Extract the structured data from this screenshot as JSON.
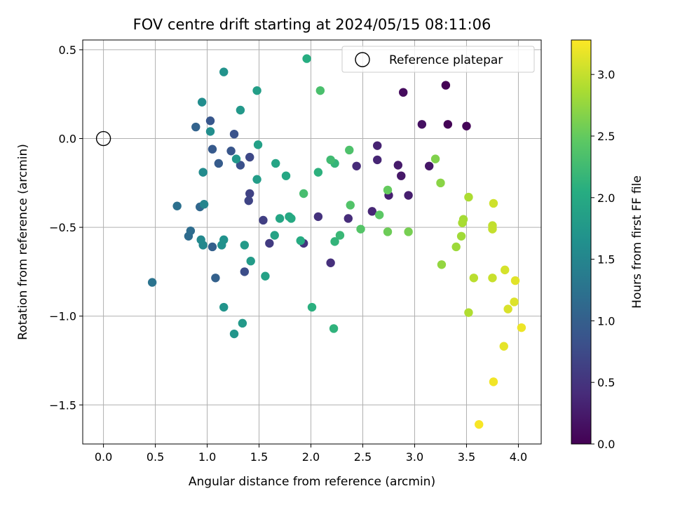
{
  "chart_data": {
    "type": "scatter",
    "title": "FOV centre drift starting at 2024/05/15 08:11:06",
    "xlabel": "Angular distance from reference (arcmin)",
    "ylabel": "Rotation from reference (arcmin)",
    "xlim": [
      -0.2,
      4.22
    ],
    "ylim": [
      -1.72,
      0.555
    ],
    "xticks": [
      0.0,
      0.5,
      1.0,
      1.5,
      2.0,
      2.5,
      3.0,
      3.5,
      4.0
    ],
    "xtick_labels": [
      "0.0",
      "0.5",
      "1.0",
      "1.5",
      "2.0",
      "2.5",
      "3.0",
      "3.5",
      "4.0"
    ],
    "yticks": [
      0.5,
      0.0,
      -0.5,
      -1.0,
      -1.5
    ],
    "ytick_labels": [
      "0.5",
      "0.0",
      "−0.5",
      "−1.0",
      "−1.5"
    ],
    "grid": true,
    "legend": {
      "placement": "top-right",
      "entries": [
        "Reference platepar"
      ]
    },
    "reference_point": {
      "x": 0.0,
      "y": 0.0
    },
    "colorbar": {
      "label": "Hours from first FF file",
      "colormap": "viridis",
      "range": [
        0.0,
        3.28
      ],
      "ticks": [
        0.0,
        0.5,
        1.0,
        1.5,
        2.0,
        2.5,
        3.0
      ],
      "tick_labels": [
        "0.0",
        "0.5",
        "1.0",
        "1.5",
        "2.0",
        "2.5",
        "3.0"
      ]
    },
    "points": [
      {
        "x": 3.3,
        "y": 0.3,
        "c": 0.0
      },
      {
        "x": 3.32,
        "y": 0.08,
        "c": 0.02
      },
      {
        "x": 3.5,
        "y": 0.07,
        "c": 0.04
      },
      {
        "x": 2.89,
        "y": 0.26,
        "c": 0.1
      },
      {
        "x": 3.07,
        "y": 0.08,
        "c": 0.14
      },
      {
        "x": 3.14,
        "y": -0.155,
        "c": 0.2
      },
      {
        "x": 2.87,
        "y": -0.21,
        "c": 0.22
      },
      {
        "x": 2.84,
        "y": -0.15,
        "c": 0.25
      },
      {
        "x": 2.94,
        "y": -0.32,
        "c": 0.28
      },
      {
        "x": 2.75,
        "y": -0.32,
        "c": 0.3
      },
      {
        "x": 2.64,
        "y": -0.04,
        "c": 0.32
      },
      {
        "x": 2.64,
        "y": -0.12,
        "c": 0.34
      },
      {
        "x": 2.59,
        "y": -0.41,
        "c": 0.36
      },
      {
        "x": 2.44,
        "y": -0.155,
        "c": 0.4
      },
      {
        "x": 2.36,
        "y": -0.45,
        "c": 0.42
      },
      {
        "x": 2.19,
        "y": -0.7,
        "c": 0.45
      },
      {
        "x": 2.07,
        "y": -0.44,
        "c": 0.48
      },
      {
        "x": 1.93,
        "y": -0.59,
        "c": 0.5
      },
      {
        "x": 1.6,
        "y": -0.59,
        "c": 0.58
      },
      {
        "x": 1.54,
        "y": -0.46,
        "c": 0.62
      },
      {
        "x": 1.41,
        "y": -0.31,
        "c": 0.65
      },
      {
        "x": 1.4,
        "y": -0.35,
        "c": 0.68
      },
      {
        "x": 1.41,
        "y": -0.105,
        "c": 0.72
      },
      {
        "x": 1.36,
        "y": -0.75,
        "c": 0.78
      },
      {
        "x": 1.32,
        "y": -0.15,
        "c": 0.82
      },
      {
        "x": 1.26,
        "y": 0.025,
        "c": 0.85
      },
      {
        "x": 1.23,
        "y": -0.07,
        "c": 0.88
      },
      {
        "x": 1.03,
        "y": 0.1,
        "c": 0.9
      },
      {
        "x": 1.05,
        "y": -0.06,
        "c": 0.93
      },
      {
        "x": 1.11,
        "y": -0.14,
        "c": 0.96
      },
      {
        "x": 1.05,
        "y": -0.61,
        "c": 1.0
      },
      {
        "x": 1.08,
        "y": -0.785,
        "c": 1.02
      },
      {
        "x": 0.89,
        "y": 0.065,
        "c": 1.05
      },
      {
        "x": 0.93,
        "y": -0.385,
        "c": 1.1
      },
      {
        "x": 0.82,
        "y": -0.55,
        "c": 1.15
      },
      {
        "x": 0.84,
        "y": -0.52,
        "c": 1.18
      },
      {
        "x": 0.71,
        "y": -0.38,
        "c": 1.22
      },
      {
        "x": 0.47,
        "y": -0.81,
        "c": 1.25
      },
      {
        "x": 0.97,
        "y": -0.37,
        "c": 1.5
      },
      {
        "x": 0.96,
        "y": -0.6,
        "c": 1.52
      },
      {
        "x": 0.94,
        "y": -0.57,
        "c": 1.55
      },
      {
        "x": 0.96,
        "y": -0.19,
        "c": 1.58
      },
      {
        "x": 0.95,
        "y": 0.205,
        "c": 1.6
      },
      {
        "x": 1.03,
        "y": 0.04,
        "c": 1.62
      },
      {
        "x": 1.14,
        "y": -0.6,
        "c": 1.65
      },
      {
        "x": 1.16,
        "y": -0.57,
        "c": 1.67
      },
      {
        "x": 1.16,
        "y": 0.375,
        "c": 1.68
      },
      {
        "x": 1.16,
        "y": -0.95,
        "c": 1.7
      },
      {
        "x": 1.26,
        "y": -1.1,
        "c": 1.72
      },
      {
        "x": 1.28,
        "y": -0.115,
        "c": 1.74
      },
      {
        "x": 1.32,
        "y": 0.16,
        "c": 1.75
      },
      {
        "x": 1.34,
        "y": -1.04,
        "c": 1.77
      },
      {
        "x": 1.36,
        "y": -0.6,
        "c": 1.78
      },
      {
        "x": 1.42,
        "y": -0.69,
        "c": 1.8
      },
      {
        "x": 1.48,
        "y": -0.23,
        "c": 1.82
      },
      {
        "x": 1.48,
        "y": 0.27,
        "c": 1.84
      },
      {
        "x": 1.49,
        "y": -0.035,
        "c": 1.86
      },
      {
        "x": 1.56,
        "y": -0.775,
        "c": 1.88
      },
      {
        "x": 1.65,
        "y": -0.545,
        "c": 1.9
      },
      {
        "x": 1.66,
        "y": -0.14,
        "c": 1.92
      },
      {
        "x": 1.7,
        "y": -0.45,
        "c": 1.94
      },
      {
        "x": 1.76,
        "y": -0.21,
        "c": 1.96
      },
      {
        "x": 1.79,
        "y": -0.44,
        "c": 1.98
      },
      {
        "x": 1.81,
        "y": -0.45,
        "c": 2.0
      },
      {
        "x": 1.9,
        "y": -0.575,
        "c": 2.02
      },
      {
        "x": 1.96,
        "y": 0.45,
        "c": 2.05
      },
      {
        "x": 2.01,
        "y": -0.95,
        "c": 2.08
      },
      {
        "x": 2.07,
        "y": -0.19,
        "c": 2.1
      },
      {
        "x": 2.22,
        "y": -1.07,
        "c": 2.12
      },
      {
        "x": 2.23,
        "y": -0.58,
        "c": 2.14
      },
      {
        "x": 2.23,
        "y": -0.14,
        "c": 2.16
      },
      {
        "x": 2.28,
        "y": -0.545,
        "c": 2.2
      },
      {
        "x": 2.19,
        "y": -0.12,
        "c": 2.25
      },
      {
        "x": 1.93,
        "y": -0.31,
        "c": 2.3
      },
      {
        "x": 2.09,
        "y": 0.27,
        "c": 2.32
      },
      {
        "x": 2.37,
        "y": -0.065,
        "c": 2.35
      },
      {
        "x": 2.38,
        "y": -0.375,
        "c": 2.38
      },
      {
        "x": 2.48,
        "y": -0.51,
        "c": 2.4
      },
      {
        "x": 2.66,
        "y": -0.43,
        "c": 2.45
      },
      {
        "x": 2.74,
        "y": -0.29,
        "c": 2.5
      },
      {
        "x": 2.74,
        "y": -0.525,
        "c": 2.55
      },
      {
        "x": 2.94,
        "y": -0.525,
        "c": 2.6
      },
      {
        "x": 3.2,
        "y": -0.115,
        "c": 2.65
      },
      {
        "x": 3.25,
        "y": -0.25,
        "c": 2.7
      },
      {
        "x": 3.26,
        "y": -0.71,
        "c": 2.75
      },
      {
        "x": 3.4,
        "y": -0.61,
        "c": 2.8
      },
      {
        "x": 3.45,
        "y": -0.55,
        "c": 2.82
      },
      {
        "x": 3.47,
        "y": -0.455,
        "c": 2.84
      },
      {
        "x": 3.46,
        "y": -0.475,
        "c": 2.86
      },
      {
        "x": 3.52,
        "y": -0.33,
        "c": 2.88
      },
      {
        "x": 3.52,
        "y": -0.98,
        "c": 2.9
      },
      {
        "x": 3.57,
        "y": -0.785,
        "c": 2.95
      },
      {
        "x": 3.75,
        "y": -0.49,
        "c": 2.98
      },
      {
        "x": 3.75,
        "y": -0.51,
        "c": 3.0
      },
      {
        "x": 3.75,
        "y": -0.785,
        "c": 3.02
      },
      {
        "x": 3.76,
        "y": -0.365,
        "c": 3.05
      },
      {
        "x": 3.87,
        "y": -0.74,
        "c": 3.08
      },
      {
        "x": 3.9,
        "y": -0.96,
        "c": 3.1
      },
      {
        "x": 3.96,
        "y": -0.92,
        "c": 3.12
      },
      {
        "x": 3.97,
        "y": -0.8,
        "c": 3.14
      },
      {
        "x": 3.86,
        "y": -1.17,
        "c": 3.16
      },
      {
        "x": 4.03,
        "y": -1.065,
        "c": 3.2
      },
      {
        "x": 3.76,
        "y": -1.37,
        "c": 3.22
      },
      {
        "x": 3.62,
        "y": -1.61,
        "c": 3.25
      }
    ]
  }
}
